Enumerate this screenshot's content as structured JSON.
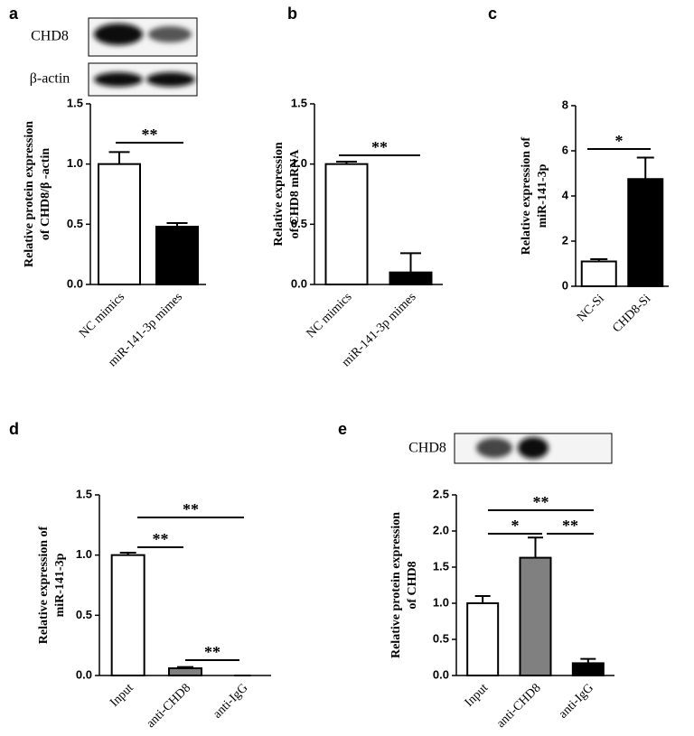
{
  "chart_data": [
    {
      "type": "bar",
      "panel": "a",
      "blot_labels": [
        "CHD8",
        "β-actin"
      ],
      "ylabel": [
        "Relative protein expression",
        "of CHD8/β -actin"
      ],
      "categories": [
        "NC mimics",
        "miR-141-3p mimes"
      ],
      "values": [
        1.0,
        0.48
      ],
      "errors": [
        0.1,
        0.03
      ],
      "colors": [
        "#ffffff",
        "#000000"
      ],
      "ylim": [
        0,
        1.5
      ],
      "yticks": [
        {
          "value": 0,
          "label": "0.0"
        },
        0.5,
        {
          "value": 1,
          "label": "1.0"
        },
        1.5
      ],
      "annotations": [
        "**"
      ]
    },
    {
      "type": "bar",
      "panel": "b",
      "ylabel": [
        "Relative expression",
        "of CHD8 mRNA"
      ],
      "categories": [
        "NC mimics",
        "miR-141-3p mimes"
      ],
      "values": [
        1.0,
        0.1
      ],
      "errors": [
        0.02,
        0.16
      ],
      "colors": [
        "#ffffff",
        "#000000"
      ],
      "ylim": [
        0,
        1.5
      ],
      "yticks": [
        {
          "value": 0,
          "label": "0.0"
        },
        0.5,
        {
          "value": 1,
          "label": "1.0"
        },
        1.5
      ],
      "annotations": [
        "**"
      ]
    },
    {
      "type": "bar",
      "panel": "c",
      "ylabel": [
        "Relative expression of",
        "miR-141-3p"
      ],
      "categories": [
        "NC-Si",
        "CHD8-Si"
      ],
      "values": [
        1.1,
        4.75
      ],
      "errors": [
        0.1,
        0.95
      ],
      "colors": [
        "#ffffff",
        "#000000"
      ],
      "ylim": [
        0,
        8
      ],
      "yticks": [
        0,
        2,
        4,
        6,
        8
      ],
      "annotations": [
        "*"
      ]
    },
    {
      "type": "bar",
      "panel": "d",
      "ylabel": [
        "Relative expression of",
        "miR-141-3p"
      ],
      "categories": [
        "Input",
        "anti-CHD8",
        "anti-IgG"
      ],
      "values": [
        1.0,
        0.06,
        0
      ],
      "errors": [
        0.02,
        0.01,
        0
      ],
      "colors": [
        "#ffffff",
        "#808080",
        "#000000"
      ],
      "ylim": [
        0,
        1.5
      ],
      "yticks": [
        {
          "value": 0,
          "label": "0.0"
        },
        0.5,
        {
          "value": 1,
          "label": "1.0"
        },
        1.5
      ],
      "annotations": [
        "**",
        "**",
        "**"
      ]
    },
    {
      "type": "bar",
      "panel": "e",
      "blot_labels": [
        "CHD8"
      ],
      "ylabel": [
        "Relative protein expression",
        "of CHD8"
      ],
      "categories": [
        "Input",
        "anti-CHD8",
        "anti-IgG"
      ],
      "values": [
        1.0,
        1.63,
        0.17
      ],
      "errors": [
        0.1,
        0.28,
        0.06
      ],
      "colors": [
        "#ffffff",
        "#808080",
        "#000000"
      ],
      "ylim": [
        0,
        2.5
      ],
      "yticks": [
        {
          "value": 0,
          "label": "0.0"
        },
        0.5,
        {
          "value": 1,
          "label": "1.0"
        },
        1.5,
        {
          "value": 2,
          "label": "2.0"
        },
        2.5
      ],
      "annotations": [
        "**",
        "*",
        "**"
      ]
    }
  ]
}
